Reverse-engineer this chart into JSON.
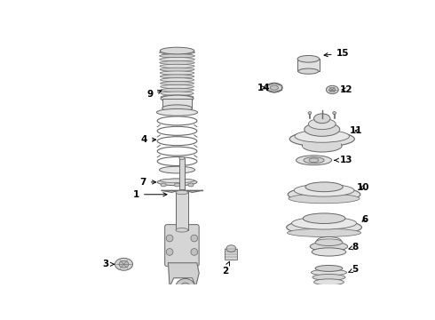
{
  "bg_color": "#ffffff",
  "line_color": "#666666",
  "label_color": "#000000",
  "figsize": [
    4.9,
    3.6
  ],
  "dpi": 100
}
